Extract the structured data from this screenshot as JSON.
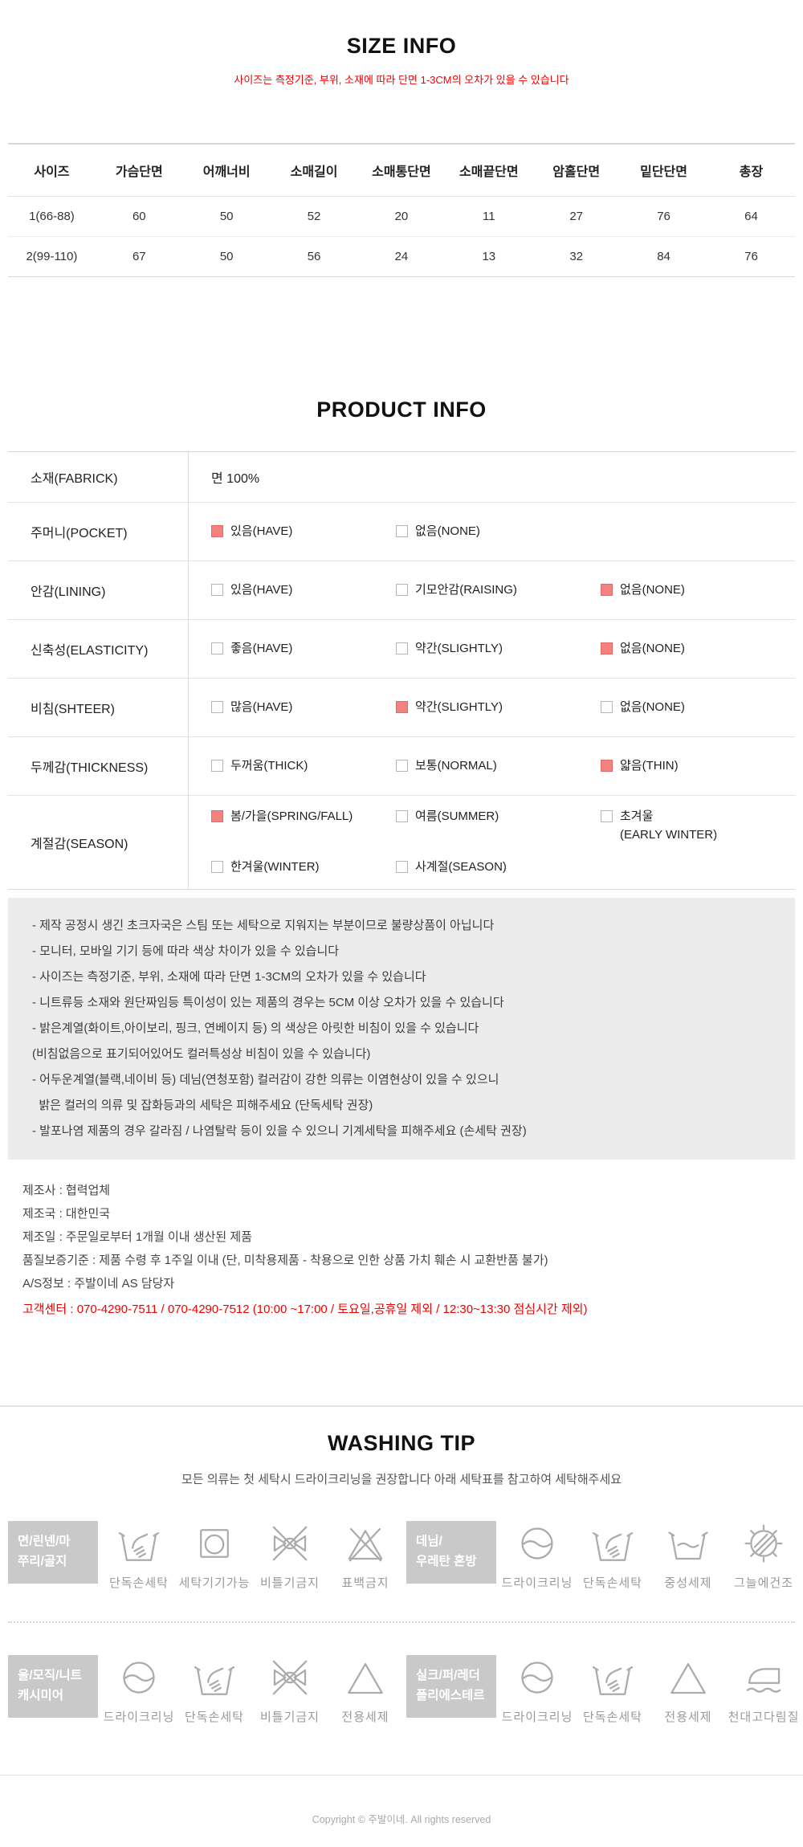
{
  "colors": {
    "accent_red": "#f20000",
    "checkbox_checked_fill": "#f4807f",
    "checkbox_checked_border": "#e26a6a",
    "notice_box_bg": "#ececec",
    "wash_label_bg": "#c9c9c9",
    "table_border": "#e3e3e3"
  },
  "size_info": {
    "title": "SIZE INFO",
    "subtitle": "사이즈는 측정기준, 부위, 소재에 따라 단면 1-3CM의 오차가 있을 수 있습니다"
  },
  "size_table": {
    "headers": [
      "사이즈",
      "가슴단면",
      "어깨너비",
      "소매길이",
      "소매통단면",
      "소매끝단면",
      "암홀단면",
      "밑단단면",
      "총장"
    ],
    "rows": [
      {
        "size": "1(66-88)",
        "values": [
          "60",
          "50",
          "52",
          "20",
          "11",
          "27",
          "76",
          "64"
        ]
      },
      {
        "size": "2(99-110)",
        "values": [
          "67",
          "50",
          "56",
          "24",
          "13",
          "32",
          "84",
          "76"
        ]
      }
    ]
  },
  "product_info": {
    "title": "PRODUCT INFO",
    "rows": [
      {
        "label": "소재(FABRICK)",
        "text": "면 100%"
      },
      {
        "label": "주머니(POCKET)",
        "options": [
          {
            "label": "있음(HAVE)",
            "checked": true
          },
          {
            "label": "없음(NONE)",
            "checked": false
          }
        ]
      },
      {
        "label": "안감(LINING)",
        "options": [
          {
            "label": "있음(HAVE)",
            "checked": false
          },
          {
            "label": "기모안감(RAISING)",
            "checked": false
          },
          {
            "label": "없음(NONE)",
            "checked": true
          }
        ]
      },
      {
        "label": "신축성(ELASTICITY)",
        "options": [
          {
            "label": "좋음(HAVE)",
            "checked": false
          },
          {
            "label": "약간(SLIGHTLY)",
            "checked": false
          },
          {
            "label": "없음(NONE)",
            "checked": true
          }
        ]
      },
      {
        "label": "비침(SHTEER)",
        "options": [
          {
            "label": "많음(HAVE)",
            "checked": false
          },
          {
            "label": "약간(SLIGHTLY)",
            "checked": true
          },
          {
            "label": "없음(NONE)",
            "checked": false
          }
        ]
      },
      {
        "label": "두께감(THICKNESS)",
        "options": [
          {
            "label": "두꺼움(THICK)",
            "checked": false
          },
          {
            "label": "보통(NORMAL)",
            "checked": false
          },
          {
            "label": "얇음(THIN)",
            "checked": true
          }
        ]
      },
      {
        "label": "계절감(SEASON)",
        "season": true,
        "options": [
          {
            "label": "봄/가을(SPRING/FALL)",
            "checked": true
          },
          {
            "label": "여름(SUMMER)",
            "checked": false
          },
          {
            "label": "초겨울\n(EARLY WINTER)",
            "checked": false
          },
          {
            "label": "한겨울(WINTER)",
            "checked": false
          },
          {
            "label": "사계절(SEASON)",
            "checked": false
          }
        ]
      }
    ]
  },
  "notice": {
    "lines": [
      "- 제작 공정시 생긴 초크자국은 스팀 또는 세탁으로 지워지는 부분이므로 불량상품이 아닙니다",
      "- 모니터, 모바일 기기 등에 따라 색상 차이가 있을 수 있습니다",
      "- 사이즈는 측정기준, 부위, 소재에 따라 단면 1-3CM의 오차가 있을 수 있습니다",
      "- 니트류등 소재와 원단짜임등 특이성이 있는 제품의 경우는 5CM 이상 오차가 있을 수 있습니다",
      "- 밝은계열(화이트,아이보리, 핑크, 연베이지 등) 의 색상은 아릿한 비침이 있을 수 있습니다",
      "(비침없음으로 표기되어있어도 컬러특성상 비침이 있을 수 있습니다)",
      "- 어두운계열(블랙,네이비 등) 데님(연청포함) 컬러감이 강한 의류는 이염현상이 있을 수 있으니",
      "  밝은 컬러의 의류 및 잡화등과의 세탁은 피해주세요 (단독세탁 권장)",
      "- 발포나염 제품의 경우 갈라짐 / 나염탈락 등이 있을 수 있으니 기계세탁을 피해주세요 (손세탁 권장)"
    ]
  },
  "manufacturer": {
    "lines": [
      "제조사 : 협력업체",
      "제조국 : 대한민국",
      "제조일 :  주문일로부터 1개월 이내 생산된 제품",
      "품질보증기준 : 제품 수령 후 1주일 이내 (단, 미착용제품 - 착용으로 인한 상품 가치 훼손 시 교환반품 불가)",
      "A/S정보 : 주발이네 AS 담당자"
    ],
    "customer_center": "고객센터 : 070-4290-7511 / 070-4290-7512 (10:00 ~17:00 / 토요일,공휴일 제외 / 12:30~13:30 점심시간 제외)"
  },
  "washing": {
    "title": "WASHING TIP",
    "subtitle": "모든 의류는 첫 세탁시 드라이크리닝을 권장합니다 아래 세탁표를 참고하여 세탁해주세요",
    "groups": [
      {
        "label": "면/린넨/마\n쭈리/골지",
        "icons": [
          {
            "icon": "hand-wash",
            "caption": "단독손세탁"
          },
          {
            "icon": "machine-wash",
            "caption": "세탁기기가능"
          },
          {
            "icon": "no-wring",
            "caption": "비틀기금지"
          },
          {
            "icon": "no-bleach",
            "caption": "표백금지"
          }
        ]
      },
      {
        "label": "데님/\n우레탄 혼방",
        "icons": [
          {
            "icon": "dry-clean",
            "caption": "드라이크리닝"
          },
          {
            "icon": "hand-wash",
            "caption": "단독손세탁"
          },
          {
            "icon": "neutral-detergent",
            "caption": "중성세제"
          },
          {
            "icon": "shade-dry",
            "caption": "그늘에건조"
          }
        ]
      },
      {
        "label": "울/모직/니트\n캐시미어",
        "icons": [
          {
            "icon": "dry-clean",
            "caption": "드라이크리닝"
          },
          {
            "icon": "hand-wash",
            "caption": "단독손세탁"
          },
          {
            "icon": "no-wring",
            "caption": "비틀기금지"
          },
          {
            "icon": "special-detergent",
            "caption": "전용세제"
          }
        ]
      },
      {
        "label": "실크/퍼/레더\n폴리에스테르",
        "icons": [
          {
            "icon": "dry-clean",
            "caption": "드라이크리닝"
          },
          {
            "icon": "hand-wash",
            "caption": "단독손세탁"
          },
          {
            "icon": "special-detergent",
            "caption": "전용세제"
          },
          {
            "icon": "iron-cloth",
            "caption": "천대고다림질"
          }
        ]
      }
    ]
  },
  "footer": {
    "text": "Copyright © 주발이네. All rights reserved"
  }
}
